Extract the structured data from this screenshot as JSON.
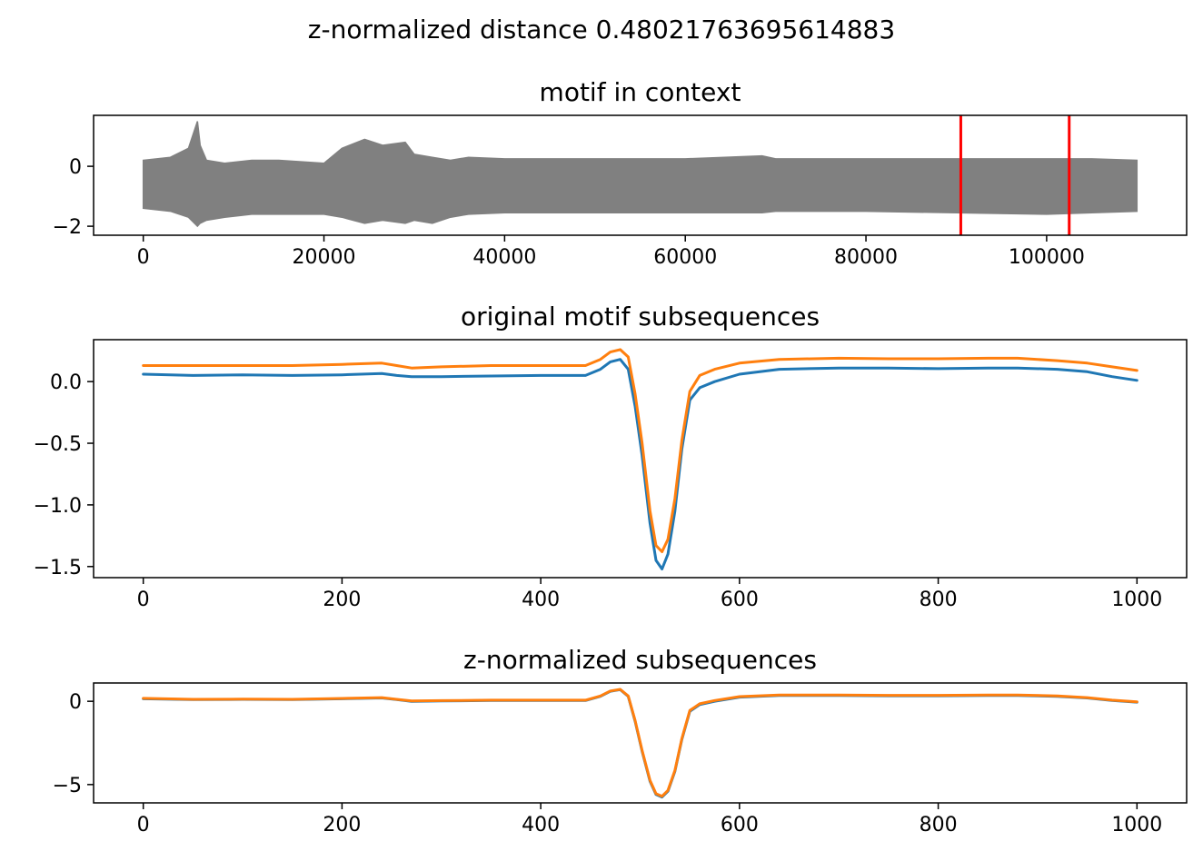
{
  "figure": {
    "suptitle": "z-normalized distance 0.48021763695614883"
  },
  "chart_data": [
    {
      "type": "line",
      "title": "motif in context",
      "xlabel": "",
      "ylabel": "",
      "xlim": [
        -5500,
        115500
      ],
      "ylim": [
        -2.3,
        1.7
      ],
      "xticks": [
        0,
        20000,
        40000,
        60000,
        80000,
        100000
      ],
      "xtick_labels": [
        "0",
        "20000",
        "40000",
        "60000",
        "80000",
        "100000"
      ],
      "yticks": [
        0,
        -2
      ],
      "ytick_labels": [
        "0",
        "−2"
      ],
      "grid": false,
      "series": [
        {
          "color": "#808080",
          "kind": "band",
          "x": [
            0,
            3000,
            5000,
            6000,
            6300,
            7000,
            9000,
            12000,
            15000,
            20000,
            22000,
            24500,
            26500,
            29000,
            30000,
            32000,
            34000,
            36000,
            40000,
            50000,
            60000,
            68500,
            70000,
            80000,
            90000,
            100000,
            105000,
            110000
          ],
          "upper": [
            0.2,
            0.3,
            0.6,
            1.5,
            0.7,
            0.2,
            0.1,
            0.2,
            0.2,
            0.1,
            0.6,
            0.9,
            0.7,
            0.8,
            0.4,
            0.3,
            0.2,
            0.3,
            0.25,
            0.25,
            0.25,
            0.35,
            0.25,
            0.25,
            0.25,
            0.25,
            0.25,
            0.2
          ],
          "lower": [
            -1.4,
            -1.5,
            -1.7,
            -2.0,
            -1.9,
            -1.8,
            -1.7,
            -1.6,
            -1.6,
            -1.6,
            -1.7,
            -1.9,
            -1.8,
            -1.9,
            -1.8,
            -1.9,
            -1.7,
            -1.6,
            -1.55,
            -1.55,
            -1.55,
            -1.55,
            -1.5,
            -1.5,
            -1.55,
            -1.6,
            -1.55,
            -1.5
          ]
        }
      ],
      "markers": {
        "color": "#ff0000",
        "x": [
          90500,
          102500
        ]
      }
    },
    {
      "type": "line",
      "title": "original motif subsequences",
      "xlabel": "",
      "ylabel": "",
      "xlim": [
        -50,
        1050
      ],
      "ylim": [
        -1.59,
        0.34
      ],
      "xticks": [
        0,
        200,
        400,
        600,
        800,
        1000
      ],
      "xtick_labels": [
        "0",
        "200",
        "400",
        "600",
        "800",
        "1000"
      ],
      "yticks": [
        0.0,
        -0.5,
        -1.0,
        -1.5
      ],
      "ytick_labels": [
        "0.0",
        "−0.5",
        "−1.0",
        "−1.5"
      ],
      "grid": false,
      "series": [
        {
          "color": "#1f77b4",
          "x": [
            0,
            50,
            100,
            150,
            200,
            240,
            255,
            270,
            300,
            350,
            400,
            445,
            460,
            470,
            480,
            488,
            495,
            502,
            510,
            516,
            522,
            528,
            535,
            542,
            550,
            560,
            575,
            600,
            640,
            700,
            750,
            800,
            850,
            880,
            920,
            950,
            975,
            1000
          ],
          "values": [
            0.06,
            0.05,
            0.055,
            0.05,
            0.055,
            0.065,
            0.05,
            0.04,
            0.04,
            0.045,
            0.05,
            0.05,
            0.1,
            0.16,
            0.18,
            0.1,
            -0.2,
            -0.6,
            -1.15,
            -1.45,
            -1.52,
            -1.4,
            -1.05,
            -0.55,
            -0.15,
            -0.05,
            0.0,
            0.06,
            0.1,
            0.11,
            0.11,
            0.105,
            0.11,
            0.11,
            0.1,
            0.08,
            0.04,
            0.01
          ]
        },
        {
          "color": "#ff7f0e",
          "x": [
            0,
            50,
            100,
            150,
            200,
            240,
            255,
            270,
            300,
            350,
            400,
            445,
            460,
            470,
            480,
            488,
            495,
            502,
            510,
            516,
            522,
            528,
            535,
            542,
            550,
            560,
            575,
            600,
            640,
            700,
            750,
            800,
            850,
            880,
            920,
            950,
            975,
            1000
          ],
          "values": [
            0.13,
            0.13,
            0.13,
            0.13,
            0.14,
            0.15,
            0.13,
            0.11,
            0.12,
            0.13,
            0.13,
            0.13,
            0.18,
            0.24,
            0.26,
            0.2,
            -0.1,
            -0.5,
            -1.05,
            -1.33,
            -1.38,
            -1.28,
            -0.95,
            -0.48,
            -0.08,
            0.05,
            0.1,
            0.15,
            0.18,
            0.19,
            0.185,
            0.185,
            0.19,
            0.19,
            0.17,
            0.15,
            0.12,
            0.09
          ]
        }
      ]
    },
    {
      "type": "line",
      "title": "z-normalized subsequences",
      "xlabel": "",
      "ylabel": "",
      "xlim": [
        -50,
        1050
      ],
      "ylim": [
        -6.1,
        1.1
      ],
      "xticks": [
        0,
        200,
        400,
        600,
        800,
        1000
      ],
      "xtick_labels": [
        "0",
        "200",
        "400",
        "600",
        "800",
        "1000"
      ],
      "yticks": [
        0,
        -5
      ],
      "ytick_labels": [
        "0",
        "−5"
      ],
      "grid": false,
      "series": [
        {
          "color": "#1f77b4",
          "x": [
            0,
            50,
            100,
            150,
            200,
            240,
            255,
            270,
            300,
            350,
            400,
            445,
            460,
            470,
            480,
            488,
            495,
            502,
            510,
            516,
            522,
            528,
            535,
            542,
            550,
            560,
            575,
            600,
            640,
            700,
            750,
            800,
            850,
            880,
            920,
            950,
            975,
            1000
          ],
          "values": [
            0.15,
            0.1,
            0.12,
            0.1,
            0.15,
            0.2,
            0.1,
            0.0,
            0.02,
            0.05,
            0.05,
            0.05,
            0.3,
            0.6,
            0.7,
            0.3,
            -1.2,
            -3.0,
            -4.8,
            -5.6,
            -5.75,
            -5.4,
            -4.2,
            -2.3,
            -0.6,
            -0.2,
            0.0,
            0.25,
            0.35,
            0.35,
            0.33,
            0.33,
            0.35,
            0.35,
            0.3,
            0.2,
            0.05,
            -0.05
          ]
        },
        {
          "color": "#ff7f0e",
          "x": [
            0,
            50,
            100,
            150,
            200,
            240,
            255,
            270,
            300,
            350,
            400,
            445,
            460,
            470,
            480,
            488,
            495,
            502,
            510,
            516,
            522,
            528,
            535,
            542,
            550,
            560,
            575,
            600,
            640,
            700,
            750,
            800,
            850,
            880,
            920,
            950,
            975,
            1000
          ],
          "values": [
            0.18,
            0.12,
            0.13,
            0.12,
            0.17,
            0.22,
            0.12,
            0.02,
            0.04,
            0.07,
            0.07,
            0.07,
            0.32,
            0.62,
            0.72,
            0.32,
            -1.15,
            -2.95,
            -4.75,
            -5.55,
            -5.7,
            -5.35,
            -4.15,
            -2.25,
            -0.55,
            -0.15,
            0.05,
            0.28,
            0.38,
            0.38,
            0.36,
            0.36,
            0.38,
            0.38,
            0.32,
            0.22,
            0.07,
            -0.03
          ]
        }
      ]
    }
  ]
}
